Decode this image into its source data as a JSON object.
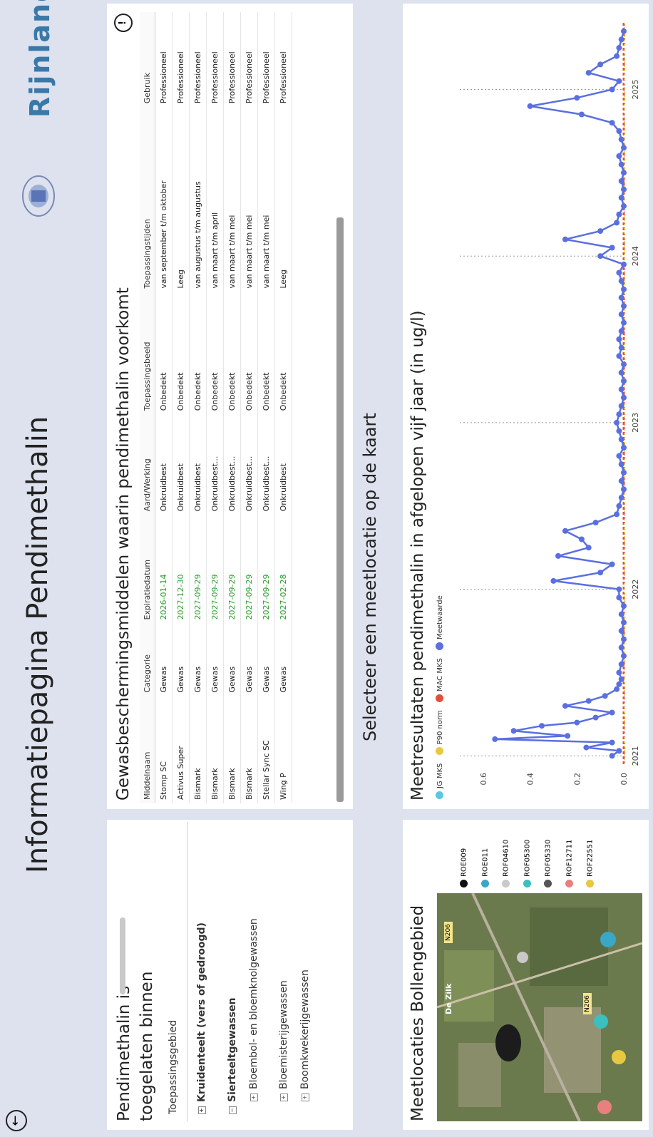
{
  "page": {
    "title": "Informatiepagina Pendimethalin",
    "select_prompt": "Selecteer een meetlocatie op de kaart",
    "logo_text": "Rijnland"
  },
  "left_panel": {
    "title": "Pendimethalin is toegelaten binnen",
    "tree_header": "Toepassingsgebied",
    "tree": [
      {
        "label": "Kruidenteelt (vers of gedroogd)",
        "level": 0,
        "toggle": "⊞",
        "bold": true
      },
      {
        "label": "Sierteeltgewassen",
        "level": 0,
        "toggle": "⊟",
        "bold": true
      },
      {
        "label": "Bloembol- en bloemknolgewassen",
        "level": 1,
        "toggle": "⊞",
        "bold": false
      },
      {
        "label": "Bloemisterijgewassen",
        "level": 1,
        "toggle": "⊞",
        "bold": false
      },
      {
        "label": "Boomkwekerijgewassen",
        "level": 1,
        "toggle": "⊞",
        "bold": false
      }
    ]
  },
  "crop_table": {
    "title": "Gewasbeschermingsmiddelen waarin pendimethalin voorkomt",
    "columns": [
      "Middelnaam",
      "Categorie",
      "Expiratiedatum",
      "Aard/Werking",
      "Toepassingsbeeld",
      "Toepassingstijden",
      "Gebruik"
    ],
    "rows": [
      [
        "Stomp SC",
        "Gewas",
        "2026-01-14",
        "Onkruidbest",
        "Onbedekt",
        "van september t/m oktober",
        "Professioneel"
      ],
      [
        "Activus Super",
        "Gewas",
        "2027-12-30",
        "Onkruidbest",
        "Onbedekt",
        "Leeg",
        "Professioneel"
      ],
      [
        "Bismark",
        "Gewas",
        "2027-09-29",
        "Onkruidbest",
        "Onbedekt",
        "van augustus t/m augustus",
        "Professioneel"
      ],
      [
        "Bismark",
        "Gewas",
        "2027-09-29",
        "Onkruidbest...",
        "Onbedekt",
        "van maart t/m april",
        "Professioneel"
      ],
      [
        "Bismark",
        "Gewas",
        "2027-09-29",
        "Onkruidbest...",
        "Onbedekt",
        "van maart t/m mei",
        "Professioneel"
      ],
      [
        "Bismark",
        "Gewas",
        "2027-09-29",
        "Onkruidbest...",
        "Onbedekt",
        "van maart t/m mei",
        "Professioneel"
      ],
      [
        "Stellar Sync SC",
        "Gewas",
        "2027-09-29",
        "Onkruidbest...",
        "Onbedekt",
        "van maart t/m mei",
        "Professioneel"
      ],
      [
        "Wing P",
        "Gewas",
        "2027-02-28",
        "Onkruidbest",
        "Onbedekt",
        "Leeg",
        "Professioneel"
      ]
    ]
  },
  "map_panel": {
    "title": "Meetlocaties Bollengebied",
    "places": [
      "De Zilk",
      "N206",
      "N206"
    ],
    "locations": [
      {
        "name": "ROE009",
        "color": "#111111"
      },
      {
        "name": "ROE011",
        "color": "#3aa7c7"
      },
      {
        "name": "ROF04610",
        "color": "#c9c9c9"
      },
      {
        "name": "ROF05300",
        "color": "#3bbfbf"
      },
      {
        "name": "ROF05330",
        "color": "#555555"
      },
      {
        "name": "ROF12711",
        "color": "#e88080"
      },
      {
        "name": "ROF22551",
        "color": "#e8c840"
      }
    ]
  },
  "colors": {
    "jg_mks": "#5bc8e0",
    "p90": "#e8c840",
    "mac_mks": "#e0503a",
    "meetwaarde": "#5a6fe0"
  },
  "chart_data": {
    "type": "line",
    "title": "Meetresultaten pendimethalin in afgelopen vijf jaar (in ug/l)",
    "legend": [
      "JG MKS",
      "P90 norm",
      "MAC MKS",
      "Meetwaarde"
    ],
    "legend_position": "top",
    "x_ticks": [
      "2021",
      "2022",
      "2023",
      "2024",
      "2025"
    ],
    "y_ticks": [
      0.0,
      0.2,
      0.4,
      0.6
    ],
    "ylim": [
      0,
      0.7
    ],
    "grid": true,
    "series": [
      {
        "name": "Meetwaarde",
        "x": [
          2021.0,
          2021.03,
          2021.05,
          2021.08,
          2021.1,
          2021.12,
          2021.15,
          2021.18,
          2021.2,
          2021.23,
          2021.26,
          2021.3,
          2021.33,
          2021.36,
          2021.4,
          2021.43,
          2021.46,
          2021.5,
          2021.55,
          2021.6,
          2021.65,
          2021.7,
          2021.75,
          2021.8,
          2021.85,
          2021.9,
          2021.95,
          2022.0,
          2022.05,
          2022.1,
          2022.15,
          2022.2,
          2022.25,
          2022.3,
          2022.35,
          2022.4,
          2022.45,
          2022.5,
          2022.55,
          2022.6,
          2022.65,
          2022.7,
          2022.75,
          2022.8,
          2022.85,
          2022.9,
          2022.95,
          2023.0,
          2023.05,
          2023.1,
          2023.15,
          2023.2,
          2023.25,
          2023.3,
          2023.35,
          2023.4,
          2023.45,
          2023.5,
          2023.55,
          2023.6,
          2023.65,
          2023.7,
          2023.75,
          2023.8,
          2023.85,
          2023.9,
          2023.95,
          2024.0,
          2024.05,
          2024.1,
          2024.15,
          2024.2,
          2024.25,
          2024.3,
          2024.35,
          2024.4,
          2024.45,
          2024.5,
          2024.55,
          2024.6,
          2024.65,
          2024.7,
          2024.75,
          2024.8,
          2024.85,
          2024.9,
          2024.95,
          2025.0,
          2025.05,
          2025.1,
          2025.15,
          2025.2,
          2025.25,
          2025.3,
          2025.35
        ],
        "values": [
          0.05,
          0.02,
          0.16,
          0.05,
          0.55,
          0.24,
          0.47,
          0.35,
          0.2,
          0.12,
          0.05,
          0.25,
          0.15,
          0.08,
          0.03,
          0.02,
          0.01,
          0.02,
          0.01,
          0.0,
          0.01,
          0.0,
          0.01,
          0.0,
          0.01,
          0.0,
          0.02,
          0.02,
          0.3,
          0.1,
          0.05,
          0.28,
          0.15,
          0.18,
          0.25,
          0.12,
          0.03,
          0.02,
          0.01,
          0.0,
          0.01,
          0.0,
          0.01,
          0.02,
          0.0,
          0.01,
          0.02,
          0.03,
          0.02,
          0.01,
          0.0,
          0.01,
          0.0,
          0.01,
          0.0,
          0.02,
          0.01,
          0.02,
          0.01,
          0.0,
          0.01,
          0.0,
          0.01,
          0.0,
          0.01,
          0.02,
          0.0,
          0.1,
          0.05,
          0.25,
          0.1,
          0.03,
          0.02,
          0.0,
          0.01,
          0.0,
          0.01,
          0.0,
          0.01,
          0.02,
          0.0,
          0.01,
          0.02,
          0.05,
          0.18,
          0.4,
          0.2,
          0.05,
          0.02,
          0.15,
          0.1,
          0.03,
          0.02,
          0.01,
          0.0
        ]
      },
      {
        "name": "MAC MKS",
        "values": [
          0.0
        ]
      },
      {
        "name": "P90 norm",
        "values": [
          0.0
        ]
      },
      {
        "name": "JG MKS",
        "values": [
          0.0
        ]
      }
    ]
  }
}
